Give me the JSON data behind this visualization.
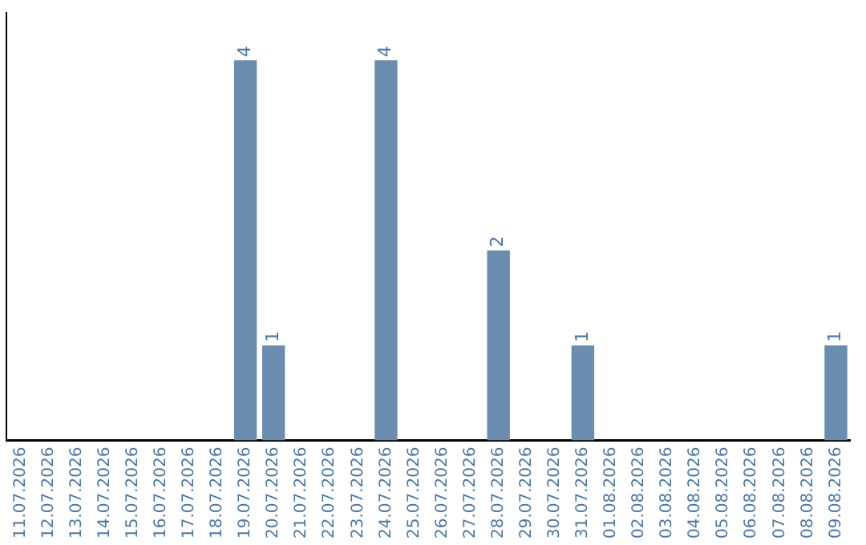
{
  "chart_data": {
    "type": "bar",
    "categories": [
      "11.07.2026",
      "12.07.2026",
      "13.07.2026",
      "14.07.2026",
      "15.07.2026",
      "16.07.2026",
      "17.07.2026",
      "18.07.2026",
      "19.07.2026",
      "20.07.2026",
      "21.07.2026",
      "22.07.2026",
      "23.07.2026",
      "24.07.2026",
      "25.07.2026",
      "26.07.2026",
      "27.07.2026",
      "28.07.2026",
      "29.07.2026",
      "30.07.2026",
      "31.07.2026",
      "01.08.2026",
      "02.08.2026",
      "03.08.2026",
      "04.08.2026",
      "05.08.2026",
      "06.08.2026",
      "07.08.2026",
      "08.08.2026",
      "09.08.2026"
    ],
    "values": [
      0,
      0,
      0,
      0,
      0,
      0,
      0,
      0,
      4,
      1,
      0,
      0,
      0,
      4,
      0,
      0,
      0,
      2,
      0,
      0,
      1,
      0,
      0,
      0,
      0,
      0,
      0,
      0,
      0,
      1
    ],
    "value_labels": [
      null,
      null,
      null,
      null,
      null,
      null,
      null,
      null,
      "4",
      "1",
      null,
      null,
      null,
      "4",
      null,
      null,
      null,
      "2",
      null,
      null,
      "1",
      null,
      null,
      null,
      null,
      null,
      null,
      null,
      null,
      "1"
    ],
    "color": "#6a8caf",
    "tick_labels": "x",
    "grid": false,
    "legend": false
  }
}
